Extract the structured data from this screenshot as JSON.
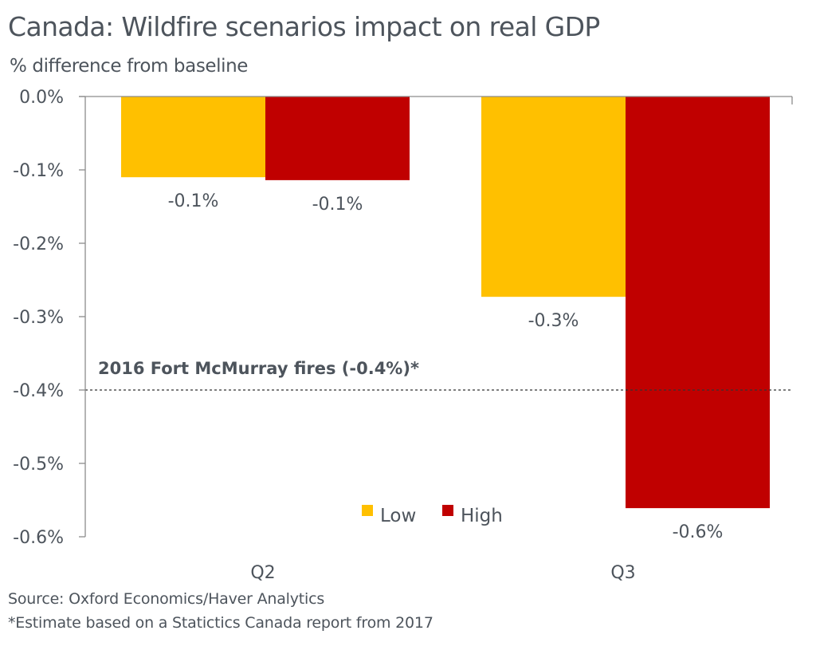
{
  "chart_data": {
    "type": "bar",
    "title": "Canada: Wildfire scenarios impact on real GDP",
    "subtitle": "% difference from baseline",
    "xlabel": "",
    "ylabel": "% difference from baseline",
    "categories": [
      "Q2",
      "Q3"
    ],
    "series": [
      {
        "name": "Low",
        "color": "#ffc000",
        "values": [
          -0.11,
          -0.273
        ],
        "labels": [
          "-0.1%",
          "-0.3%"
        ]
      },
      {
        "name": "High",
        "color": "#c00000",
        "values": [
          -0.114,
          -0.561
        ],
        "labels": [
          "-0.1%",
          "-0.6%"
        ]
      }
    ],
    "ylim": [
      -0.6,
      0.0
    ],
    "yticks": [
      0.0,
      -0.1,
      -0.2,
      -0.3,
      -0.4,
      -0.5,
      -0.6
    ],
    "ytick_labels": [
      "0.0%",
      "-0.1%",
      "-0.2%",
      "-0.3%",
      "-0.4%",
      "-0.5%",
      "-0.6%"
    ],
    "grid": false,
    "legend": {
      "position": "bottom-center",
      "entries": [
        "Low",
        "High"
      ]
    },
    "reference_line": {
      "value": -0.4,
      "style": "dotted",
      "label": "2016 Fort McMurray fires (-0.4%)*"
    }
  },
  "footer": {
    "source": "Source: Oxford Economics/Haver Analytics",
    "note": "*Estimate based on a Statictics Canada report from 2017"
  }
}
